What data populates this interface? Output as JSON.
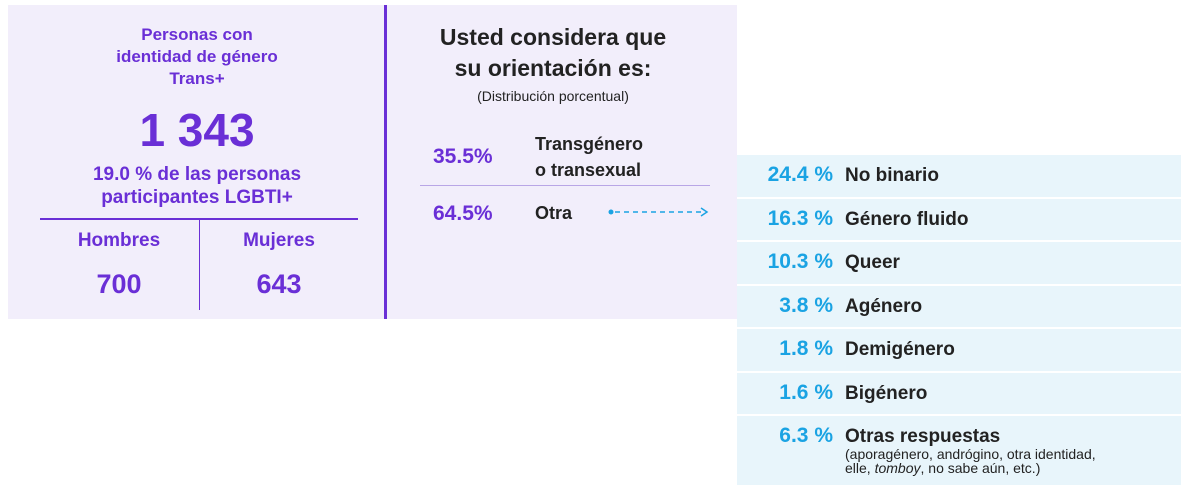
{
  "summary": {
    "title_lines": [
      "Personas con",
      "identidad de género",
      "Trans+"
    ],
    "total": "1 343",
    "share_lines": [
      "19.0 % de las personas",
      "participantes LGBTI+"
    ],
    "columns": [
      {
        "label": "Hombres",
        "value": "700"
      },
      {
        "label": "Mujeres",
        "value": "643"
      }
    ]
  },
  "question": {
    "title_lines": [
      "Usted considera que",
      "su orientación es:"
    ],
    "subtitle": "(Distribución porcentual)",
    "rows": [
      {
        "percent": "35.5%",
        "label_lines": [
          "Transgénero",
          "o transexual"
        ]
      },
      {
        "percent": "64.5%",
        "label_lines": [
          "Otra"
        ]
      }
    ]
  },
  "breakdown": {
    "rows": [
      {
        "percent": "24.4 %",
        "label": "No binario"
      },
      {
        "percent": "16.3 %",
        "label": "Género fluido"
      },
      {
        "percent": "10.3 %",
        "label": "Queer"
      },
      {
        "percent": "3.8 %",
        "label": "Agénero"
      },
      {
        "percent": "1.8 %",
        "label": "Demigénero"
      },
      {
        "percent": "1.6 %",
        "label": "Bigénero"
      },
      {
        "percent": "6.3 %",
        "label": "Otras respuestas"
      }
    ],
    "note_lines": [
      [
        "(aporagénero, andrógino, otra identidad,"
      ],
      [
        "elle, ",
        "tomboy",
        ", no sabe aún, etc.)"
      ]
    ]
  }
}
